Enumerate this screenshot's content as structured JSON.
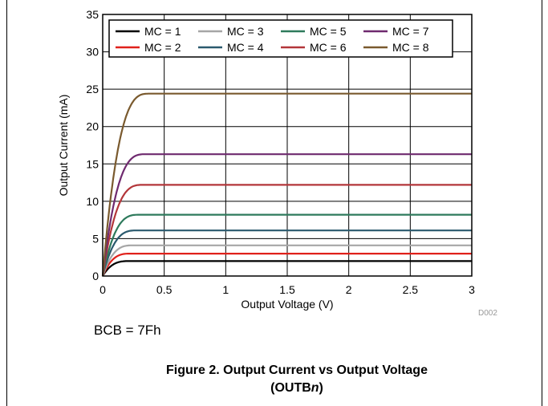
{
  "chart_data": {
    "type": "line",
    "xlabel": "Output Voltage (V)",
    "ylabel": "Output Current (mA)",
    "xlim": [
      0,
      3
    ],
    "ylim": [
      0,
      35
    ],
    "x_ticks": [
      "0",
      "0.5",
      "1",
      "1.5",
      "2",
      "2.5",
      "3"
    ],
    "y_ticks": [
      "0",
      "5",
      "10",
      "15",
      "20",
      "25",
      "30",
      "35"
    ],
    "grid": true,
    "legend_position": "top-left",
    "series": [
      {
        "name": "MC = 1",
        "color": "#000000",
        "saturation_mA": 2.0,
        "knee_V": 0.22
      },
      {
        "name": "MC = 2",
        "color": "#e0211b",
        "saturation_mA": 3.0,
        "knee_V": 0.23
      },
      {
        "name": "MC = 3",
        "color": "#a6a6a6",
        "saturation_mA": 4.1,
        "knee_V": 0.25
      },
      {
        "name": "MC = 4",
        "color": "#2b5a6e",
        "saturation_mA": 6.1,
        "knee_V": 0.28
      },
      {
        "name": "MC = 5",
        "color": "#2e7a5c",
        "saturation_mA": 8.2,
        "knee_V": 0.3
      },
      {
        "name": "MC = 6",
        "color": "#b3363a",
        "saturation_mA": 12.2,
        "knee_V": 0.33
      },
      {
        "name": "MC = 7",
        "color": "#6f2a6f",
        "saturation_mA": 16.3,
        "knee_V": 0.35
      },
      {
        "name": "MC = 8",
        "color": "#7a5a2e",
        "saturation_mA": 24.4,
        "knee_V": 0.38
      }
    ],
    "watermark": "D002"
  },
  "note": "BCB = 7Fh",
  "caption": {
    "line1": "Figure 2. Output Current vs Output Voltage",
    "line2_prefix": "(OUTB",
    "line2_italic": "n",
    "line2_suffix": ")"
  }
}
